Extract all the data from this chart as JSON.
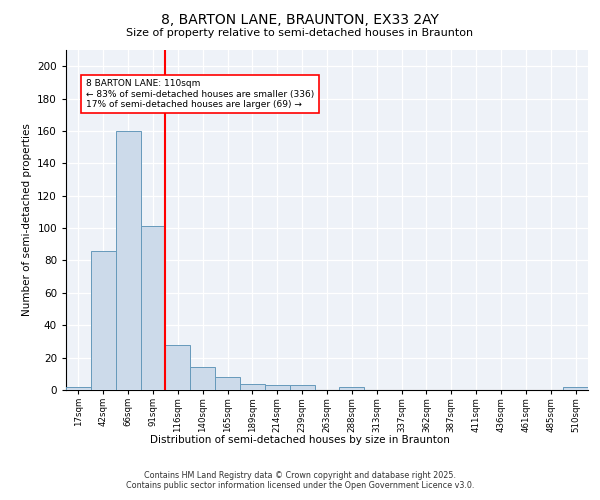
{
  "title": "8, BARTON LANE, BRAUNTON, EX33 2AY",
  "subtitle": "Size of property relative to semi-detached houses in Braunton",
  "xlabel": "Distribution of semi-detached houses by size in Braunton",
  "ylabel": "Number of semi-detached properties",
  "categories": [
    "17sqm",
    "42sqm",
    "66sqm",
    "91sqm",
    "116sqm",
    "140sqm",
    "165sqm",
    "189sqm",
    "214sqm",
    "239sqm",
    "263sqm",
    "288sqm",
    "313sqm",
    "337sqm",
    "362sqm",
    "387sqm",
    "411sqm",
    "436sqm",
    "461sqm",
    "485sqm",
    "510sqm"
  ],
  "values": [
    2,
    86,
    160,
    101,
    28,
    14,
    8,
    4,
    3,
    3,
    0,
    2,
    0,
    0,
    0,
    0,
    0,
    0,
    0,
    0,
    2
  ],
  "bar_color": "#ccdaea",
  "bar_edge_color": "#6699bb",
  "vline_pos": 3.5,
  "annotation_line1": "8 BARTON LANE: 110sqm",
  "annotation_line2": "← 83% of semi-detached houses are smaller (336)",
  "annotation_line3": "17% of semi-detached houses are larger (69) →",
  "ylim": [
    0,
    210
  ],
  "yticks": [
    0,
    20,
    40,
    60,
    80,
    100,
    120,
    140,
    160,
    180,
    200
  ],
  "bg_color": "#eef2f8",
  "footer_line1": "Contains HM Land Registry data © Crown copyright and database right 2025.",
  "footer_line2": "Contains public sector information licensed under the Open Government Licence v3.0."
}
